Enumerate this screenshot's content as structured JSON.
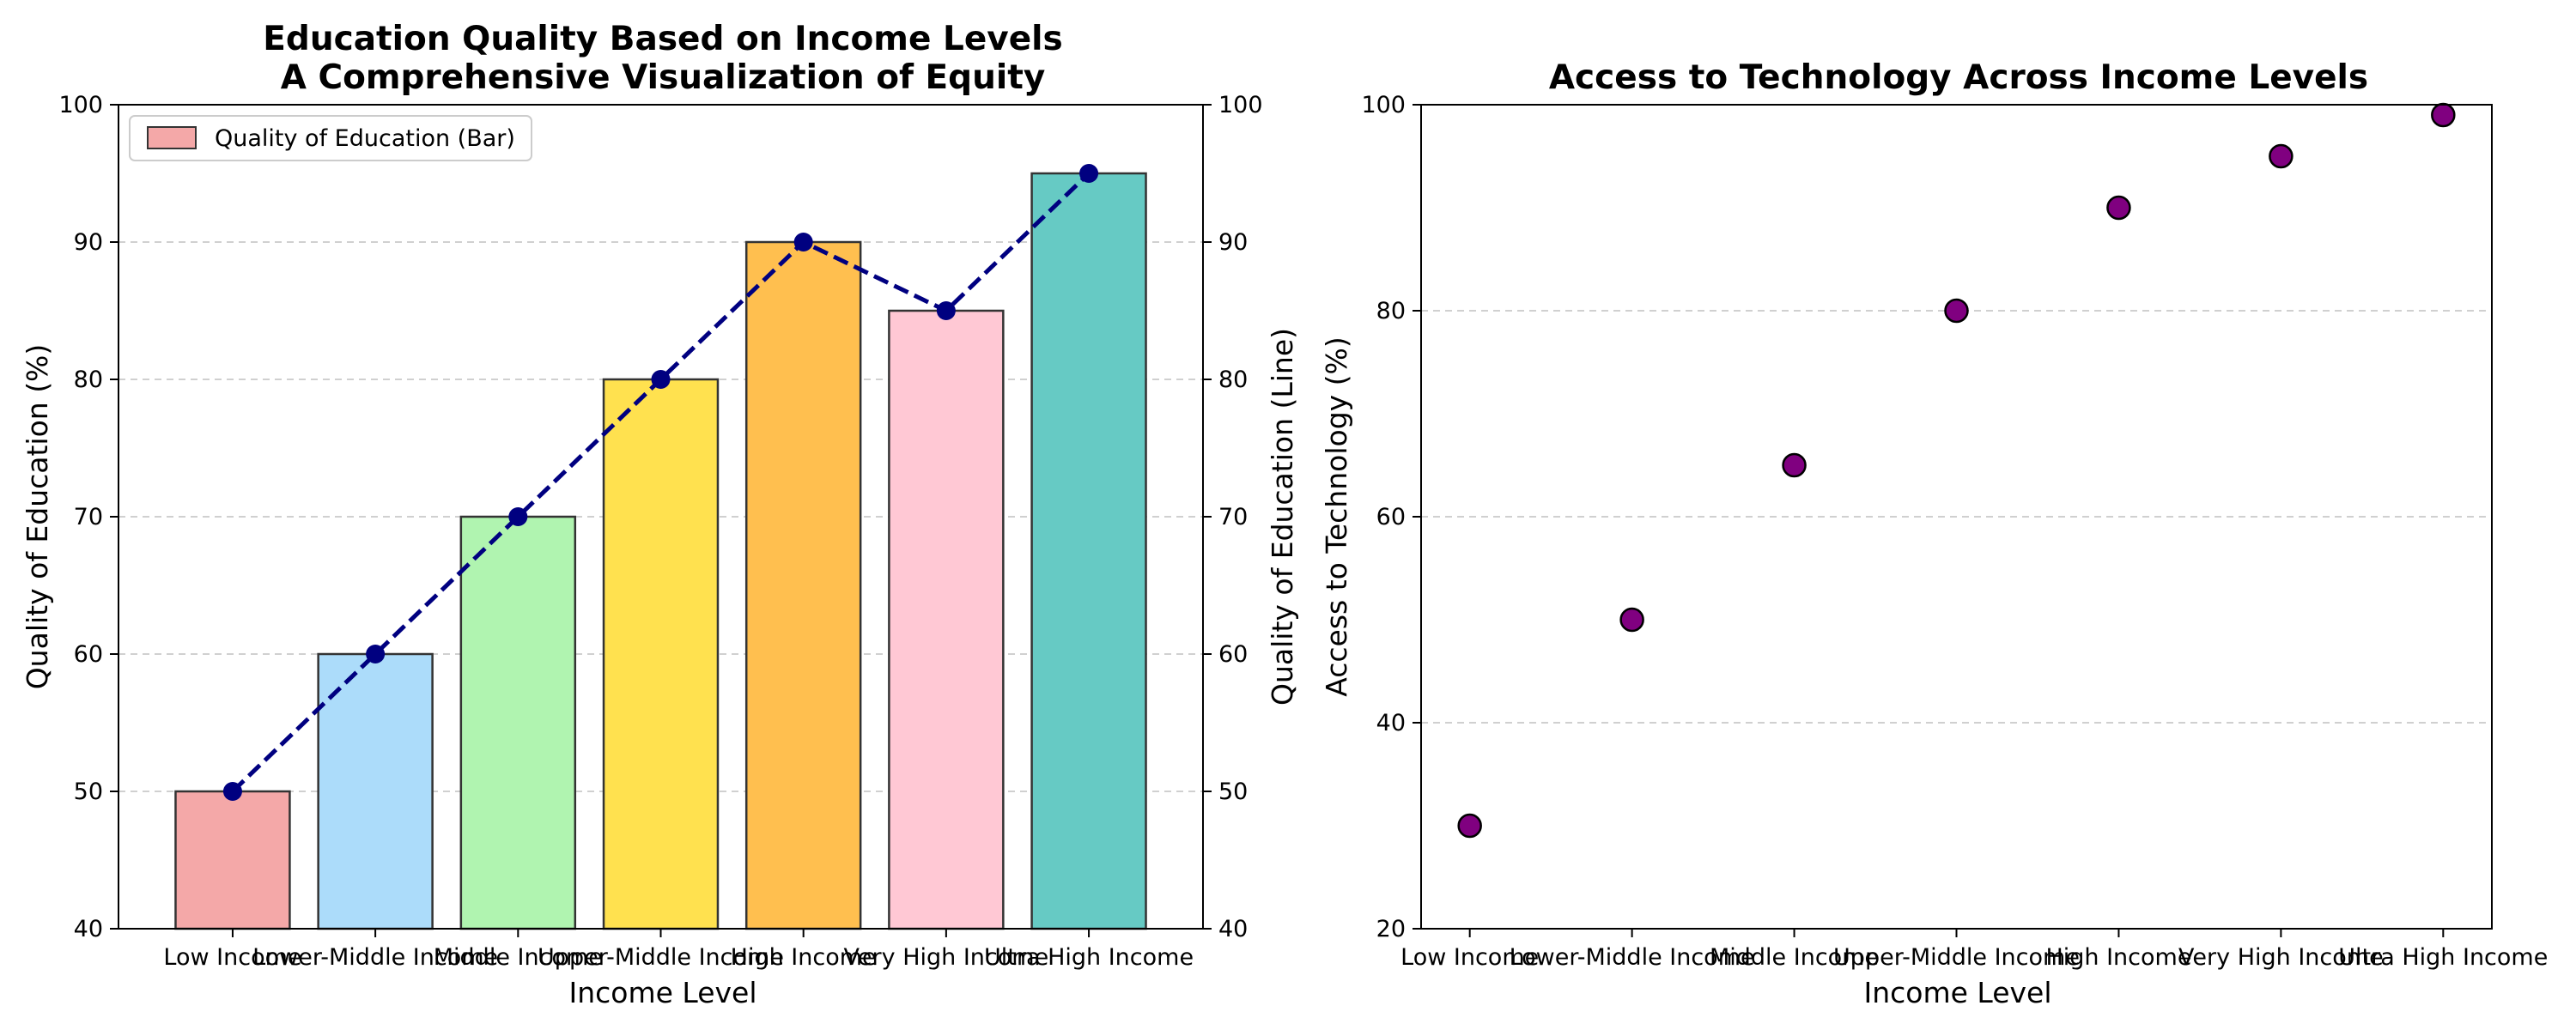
{
  "chart_data": [
    {
      "type": "bar",
      "title": [
        "Education Quality Based on Income Levels",
        "A Comprehensive Visualization of Equity"
      ],
      "xlabel": "Income Level",
      "ylabel": "Quality of Education (%)",
      "ylabel_right": "Quality of Education (Line)",
      "ylim": [
        40,
        100
      ],
      "yticks": [
        40,
        50,
        60,
        70,
        80,
        90,
        100
      ],
      "grid": "horizontal-dashed",
      "legend_placement": "top-left",
      "categories": [
        "Low Income",
        "Lower-Middle Income",
        "Middle Income",
        "Upper-Middle Income",
        "High Income",
        "Very High Income",
        "Ultra High Income"
      ],
      "series": [
        {
          "name": "Quality of Education (Bar)",
          "kind": "bar",
          "values": [
            50,
            60,
            70,
            80,
            90,
            85,
            95
          ],
          "colors": [
            "#f4a8a8",
            "#acdcfa",
            "#b0f4b0",
            "#ffe14f",
            "#ffbf4f",
            "#ffc8d4",
            "#66cac4"
          ]
        },
        {
          "kind": "line",
          "values": [
            50,
            60,
            70,
            80,
            90,
            85,
            95
          ],
          "color": "#000080"
        }
      ]
    },
    {
      "type": "scatter",
      "title": [
        "Access to Technology Across Income Levels"
      ],
      "xlabel": "Income Level",
      "ylabel": "Access to Technology (%)",
      "ylim": [
        20,
        100
      ],
      "yticks": [
        20,
        40,
        60,
        80,
        100
      ],
      "grid": "horizontal-dashed",
      "categories": [
        "Low Income",
        "Lower-Middle Income",
        "Middle Income",
        "Upper-Middle Income",
        "High Income",
        "Very High Income",
        "Ultra High Income"
      ],
      "series": [
        {
          "values": [
            30,
            50,
            65,
            80,
            90,
            95,
            99
          ],
          "color": "#800080"
        }
      ]
    }
  ]
}
